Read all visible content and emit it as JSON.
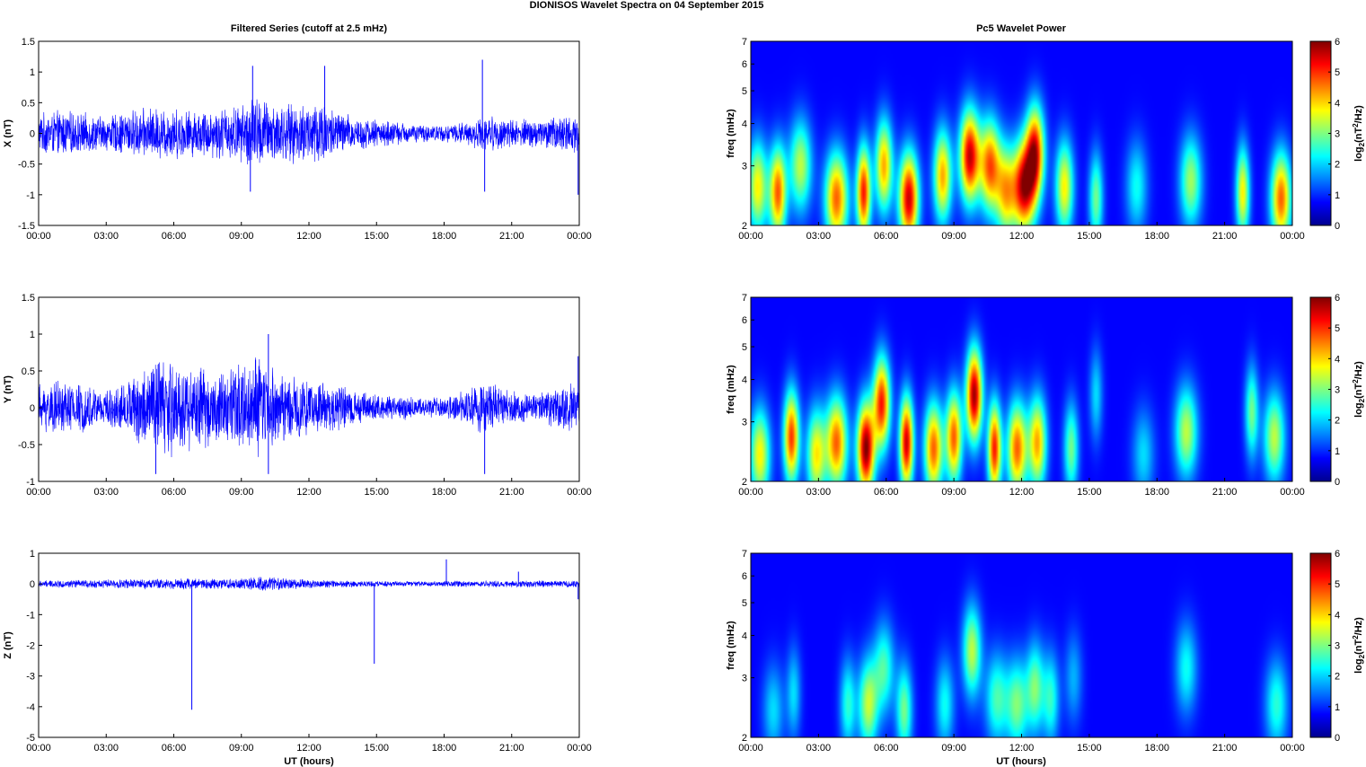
{
  "figure_title": "DIONISOS Wavelet Spectra on 04 September 2015",
  "left_title": "Filtered Series (cutoff at 2.5 mHz)",
  "right_title": "Pc5 Wavelet Power",
  "xlabel": "UT (hours)",
  "colors": {
    "trace": "#0000ff",
    "colormap": "jet",
    "background": "#00008f"
  },
  "chart_data": [
    {
      "type": "line",
      "component": "X",
      "ylabel": "X (nT)",
      "ylim": [
        -1.5,
        1.5
      ],
      "yticks": [
        "-1.5",
        "-1",
        "-0.5",
        "0",
        "0.5",
        "1",
        "1.5"
      ],
      "xlim_hours": [
        0,
        24
      ],
      "xticks": [
        "00:00",
        "03:00",
        "06:00",
        "09:00",
        "12:00",
        "15:00",
        "18:00",
        "21:00",
        "00:00"
      ],
      "series": [
        {
          "envelope_hours": [
            0,
            1,
            2,
            3,
            4,
            5,
            6,
            7,
            8,
            9,
            9.5,
            10,
            11,
            12,
            12.5,
            13,
            14,
            15,
            16,
            17,
            18,
            19,
            19.8,
            20.5,
            21,
            22,
            23,
            24
          ],
          "envelope_nT": [
            0.35,
            0.4,
            0.35,
            0.3,
            0.4,
            0.45,
            0.45,
            0.4,
            0.45,
            0.5,
            0.7,
            0.6,
            0.5,
            0.55,
            0.65,
            0.45,
            0.3,
            0.25,
            0.2,
            0.15,
            0.15,
            0.2,
            0.3,
            0.3,
            0.25,
            0.25,
            0.3,
            0.35
          ],
          "spikes": [
            {
              "x": 9.5,
              "y": 1.1
            },
            {
              "x": 9.4,
              "y": -0.95
            },
            {
              "x": 12.7,
              "y": 1.1
            },
            {
              "x": 19.7,
              "y": 1.2
            },
            {
              "x": 19.8,
              "y": -0.95
            },
            {
              "x": 23.95,
              "y": -1.0
            }
          ]
        }
      ]
    },
    {
      "type": "line",
      "component": "Y",
      "ylabel": "Y (nT)",
      "ylim": [
        -1,
        1.5
      ],
      "yticks": [
        "-1",
        "-0.5",
        "0",
        "0.5",
        "1",
        "1.5"
      ],
      "xlim_hours": [
        0,
        24
      ],
      "xticks": [
        "00:00",
        "03:00",
        "06:00",
        "09:00",
        "12:00",
        "15:00",
        "18:00",
        "21:00",
        "00:00"
      ],
      "series": [
        {
          "envelope_hours": [
            0,
            1,
            2,
            3,
            4,
            5,
            5.5,
            6,
            7,
            8,
            9,
            10,
            10.3,
            11,
            12,
            13,
            14,
            15,
            16,
            17,
            18,
            19,
            19.7,
            20.5,
            21,
            22,
            23,
            24
          ],
          "envelope_nT": [
            0.35,
            0.4,
            0.35,
            0.25,
            0.4,
            0.7,
            0.85,
            0.7,
            0.6,
            0.55,
            0.65,
            0.75,
            0.7,
            0.5,
            0.4,
            0.35,
            0.25,
            0.2,
            0.18,
            0.15,
            0.15,
            0.25,
            0.4,
            0.3,
            0.25,
            0.2,
            0.3,
            0.35
          ],
          "spikes": [
            {
              "x": 10.2,
              "y": 1.0
            },
            {
              "x": 10.2,
              "y": -0.9
            },
            {
              "x": 5.2,
              "y": -0.9
            },
            {
              "x": 19.8,
              "y": -0.9
            },
            {
              "x": 23.95,
              "y": 0.7
            }
          ]
        }
      ]
    },
    {
      "type": "line",
      "component": "Z",
      "ylabel": "Z (nT)",
      "ylim": [
        -5,
        1
      ],
      "yticks": [
        "-5",
        "-4",
        "-3",
        "-2",
        "-1",
        "0",
        "1"
      ],
      "xlim_hours": [
        0,
        24
      ],
      "xticks": [
        "00:00",
        "03:00",
        "06:00",
        "09:00",
        "12:00",
        "15:00",
        "18:00",
        "21:00",
        "00:00"
      ],
      "series": [
        {
          "envelope_hours": [
            0,
            3,
            6,
            9,
            10,
            12,
            15,
            18,
            21,
            24
          ],
          "envelope_nT": [
            0.12,
            0.15,
            0.2,
            0.2,
            0.25,
            0.15,
            0.1,
            0.1,
            0.12,
            0.12
          ],
          "spikes": [
            {
              "x": 6.8,
              "y": -4.1
            },
            {
              "x": 14.9,
              "y": -2.6
            },
            {
              "x": 18.1,
              "y": 0.8
            },
            {
              "x": 21.3,
              "y": 0.4
            },
            {
              "x": 23.95,
              "y": -0.5
            }
          ]
        }
      ]
    },
    {
      "type": "heatmap",
      "component": "X",
      "ylabel": "freq (mHz)",
      "yscale": "log",
      "ylim_mHz": [
        2,
        7
      ],
      "yticks": [
        "2",
        "3",
        "4",
        "5",
        "6",
        "7"
      ],
      "xlim_hours": [
        0,
        24
      ],
      "xticks": [
        "00:00",
        "03:00",
        "06:00",
        "09:00",
        "12:00",
        "15:00",
        "18:00",
        "21:00",
        "00:00"
      ],
      "colorbar": {
        "label": "log2(nT^2/Hz)",
        "range": [
          0,
          6
        ],
        "ticks": [
          "0",
          "1",
          "2",
          "3",
          "4",
          "5",
          "6"
        ]
      },
      "blobs": [
        {
          "t": 0.3,
          "f": 2.6,
          "p": 3.5
        },
        {
          "t": 1.2,
          "f": 2.5,
          "p": 4.5
        },
        {
          "t": 2.2,
          "f": 3.0,
          "p": 3.0
        },
        {
          "t": 3.8,
          "f": 2.4,
          "p": 4.5
        },
        {
          "t": 5.0,
          "f": 2.5,
          "p": 5.0
        },
        {
          "t": 5.9,
          "f": 3.0,
          "p": 4.0
        },
        {
          "t": 7.0,
          "f": 2.4,
          "p": 5.5
        },
        {
          "t": 8.5,
          "f": 2.8,
          "p": 4.0
        },
        {
          "t": 9.7,
          "f": 3.2,
          "p": 5.5
        },
        {
          "t": 10.6,
          "f": 3.0,
          "p": 4.5
        },
        {
          "t": 11.3,
          "f": 2.5,
          "p": 3.5
        },
        {
          "t": 12.1,
          "f": 2.6,
          "p": 5.5
        },
        {
          "t": 12.6,
          "f": 3.3,
          "p": 5.0
        },
        {
          "t": 13.9,
          "f": 2.6,
          "p": 3.5
        },
        {
          "t": 15.3,
          "f": 2.4,
          "p": 2.5
        },
        {
          "t": 17.1,
          "f": 2.6,
          "p": 1.8
        },
        {
          "t": 19.5,
          "f": 2.7,
          "p": 2.8
        },
        {
          "t": 21.8,
          "f": 2.5,
          "p": 3.5
        },
        {
          "t": 23.5,
          "f": 2.4,
          "p": 4.5
        }
      ]
    },
    {
      "type": "heatmap",
      "component": "Y",
      "ylabel": "freq (mHz)",
      "yscale": "log",
      "ylim_mHz": [
        2,
        7
      ],
      "yticks": [
        "2",
        "3",
        "4",
        "5",
        "6",
        "7"
      ],
      "xlim_hours": [
        0,
        24
      ],
      "xticks": [
        "00:00",
        "03:00",
        "06:00",
        "09:00",
        "12:00",
        "15:00",
        "18:00",
        "21:00",
        "00:00"
      ],
      "colorbar": {
        "label": "log2(nT^2/Hz)",
        "range": [
          0,
          6
        ],
        "ticks": [
          "0",
          "1",
          "2",
          "3",
          "4",
          "5",
          "6"
        ]
      },
      "blobs": [
        {
          "t": 0.4,
          "f": 2.4,
          "p": 3.5
        },
        {
          "t": 1.8,
          "f": 2.7,
          "p": 4.8
        },
        {
          "t": 2.9,
          "f": 2.4,
          "p": 3.5
        },
        {
          "t": 3.8,
          "f": 2.6,
          "p": 4.5
        },
        {
          "t": 5.1,
          "f": 2.5,
          "p": 6.0
        },
        {
          "t": 5.8,
          "f": 3.4,
          "p": 5.0
        },
        {
          "t": 6.9,
          "f": 2.6,
          "p": 5.5
        },
        {
          "t": 8.1,
          "f": 2.5,
          "p": 4.5
        },
        {
          "t": 9.0,
          "f": 2.7,
          "p": 4.5
        },
        {
          "t": 9.9,
          "f": 3.6,
          "p": 5.8
        },
        {
          "t": 10.8,
          "f": 2.5,
          "p": 5.0
        },
        {
          "t": 11.8,
          "f": 2.5,
          "p": 4.5
        },
        {
          "t": 12.7,
          "f": 2.6,
          "p": 4.0
        },
        {
          "t": 14.2,
          "f": 2.5,
          "p": 2.5
        },
        {
          "t": 15.3,
          "f": 3.6,
          "p": 1.5
        },
        {
          "t": 17.4,
          "f": 2.4,
          "p": 1.5
        },
        {
          "t": 19.3,
          "f": 2.8,
          "p": 3.0
        },
        {
          "t": 22.2,
          "f": 3.2,
          "p": 2.5
        },
        {
          "t": 23.2,
          "f": 2.7,
          "p": 3.0
        }
      ]
    },
    {
      "type": "heatmap",
      "component": "Z",
      "ylabel": "freq (mHz)",
      "yscale": "log",
      "ylim_mHz": [
        2,
        7
      ],
      "yticks": [
        "2",
        "3",
        "4",
        "5",
        "6",
        "7"
      ],
      "xlim_hours": [
        0,
        24
      ],
      "xticks": [
        "00:00",
        "03:00",
        "06:00",
        "09:00",
        "12:00",
        "15:00",
        "18:00",
        "21:00",
        "00:00"
      ],
      "colorbar": {
        "label": "log2(nT^2/Hz)",
        "range": [
          0,
          6
        ],
        "ticks": [
          "0",
          "1",
          "2",
          "3",
          "4",
          "5",
          "6"
        ]
      },
      "blobs": [
        {
          "t": 1.0,
          "f": 2.4,
          "p": 1.5
        },
        {
          "t": 1.9,
          "f": 2.7,
          "p": 1.5
        },
        {
          "t": 4.3,
          "f": 2.5,
          "p": 2.0
        },
        {
          "t": 5.2,
          "f": 2.5,
          "p": 3.0
        },
        {
          "t": 5.9,
          "f": 3.2,
          "p": 2.2
        },
        {
          "t": 6.8,
          "f": 2.4,
          "p": 2.5
        },
        {
          "t": 8.6,
          "f": 2.5,
          "p": 1.8
        },
        {
          "t": 9.8,
          "f": 3.6,
          "p": 3.0
        },
        {
          "t": 10.9,
          "f": 2.6,
          "p": 2.2
        },
        {
          "t": 11.8,
          "f": 2.5,
          "p": 2.5
        },
        {
          "t": 12.6,
          "f": 2.8,
          "p": 2.5
        },
        {
          "t": 13.3,
          "f": 2.6,
          "p": 2.0
        },
        {
          "t": 14.3,
          "f": 3.0,
          "p": 1.2
        },
        {
          "t": 19.3,
          "f": 3.2,
          "p": 1.8
        },
        {
          "t": 23.3,
          "f": 2.5,
          "p": 2.0
        }
      ]
    }
  ]
}
